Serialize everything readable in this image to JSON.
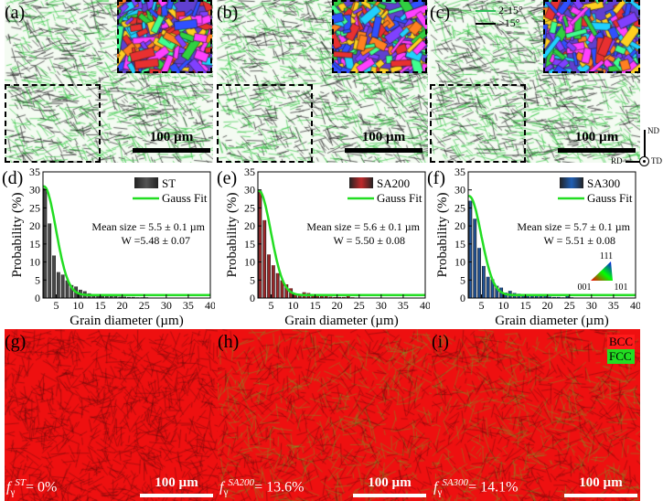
{
  "top_panels": [
    {
      "label": "(a)",
      "scale": "100 µm"
    },
    {
      "label": "(b)",
      "scale": "100 µm"
    },
    {
      "label": "(c)",
      "scale": "100 µm"
    }
  ],
  "boundary_legend": [
    {
      "label": "2-15°",
      "color": "#2fbf5a"
    },
    {
      "label": ">15°",
      "color": "#000000"
    }
  ],
  "axes_symbol": {
    "nd": "ND",
    "rd": "RD",
    "td": "TD"
  },
  "chart_data": [
    {
      "type": "bar",
      "panel": "(d)",
      "series_name": "ST",
      "color": "#555555",
      "fit_name": "Gauss Fit",
      "fit_color": "#22dd22",
      "xlabel": "Grain diameter (µm)",
      "ylabel": "Probability (%)",
      "xlim": [
        2,
        40
      ],
      "ylim": [
        0,
        35
      ],
      "xticks": [
        5,
        10,
        15,
        20,
        25,
        30,
        35,
        40
      ],
      "yticks": [
        0,
        5,
        10,
        15,
        20,
        25,
        30,
        35
      ],
      "x": [
        2.5,
        3.5,
        4.5,
        5.5,
        6.5,
        7.5,
        8.5,
        9.5,
        10.5,
        11.5,
        12.5,
        13.5,
        14.5,
        15.5,
        16.5,
        17.5,
        18.5,
        19.5,
        20.5,
        21.5,
        22.5,
        23.5,
        24.5,
        25.5
      ],
      "values": [
        30.5,
        20.7,
        11.8,
        7.2,
        6.5,
        4.9,
        3.6,
        3.2,
        2.3,
        1.9,
        1.3,
        1.0,
        0.9,
        0.8,
        0.7,
        0.6,
        0.5,
        0.4,
        0.4,
        0.3,
        0.3,
        0.2,
        0.2,
        0.2
      ],
      "fit": {
        "y0": 0.8,
        "xc": 2.2,
        "w": 5.48,
        "peak": 31
      },
      "annotation": [
        "Mean size = 5.5 ± 0.1 µm",
        "W =5.48 ± 0.07"
      ]
    },
    {
      "type": "bar",
      "panel": "(e)",
      "series_name": "SA200",
      "color": "#c0292b",
      "fit_name": "Gauss Fit",
      "fit_color": "#22dd22",
      "xlabel": "Grain diameter (µm)",
      "ylabel": "Probability (%)",
      "xlim": [
        2,
        40
      ],
      "ylim": [
        0,
        35
      ],
      "xticks": [
        5,
        10,
        15,
        20,
        25,
        30,
        35,
        40
      ],
      "yticks": [
        0,
        5,
        10,
        15,
        20,
        25,
        30,
        35
      ],
      "x": [
        2.5,
        3.5,
        4.5,
        5.5,
        6.5,
        7.5,
        8.5,
        9.5,
        10.5,
        11.5,
        12.5,
        13.5,
        14.5,
        15.5,
        16.5,
        17.5,
        18.5,
        19.5,
        20.5,
        21.5,
        22.5,
        23.5
      ],
      "values": [
        29.8,
        21.6,
        12.1,
        9.1,
        6.9,
        4.9,
        3.8,
        2.7,
        1.2,
        1.1,
        1.6,
        1.4,
        0.8,
        0.7,
        0.6,
        0.6,
        0.4,
        0.3,
        0.3,
        0.3,
        0.5,
        0.2
      ],
      "fit": {
        "y0": 0.8,
        "xc": 2.2,
        "w": 5.5,
        "peak": 29.8
      },
      "annotation": [
        "Mean size = 5.6 ± 0.1 µm",
        "W = 5.50 ± 0.08"
      ]
    },
    {
      "type": "bar",
      "panel": "(f)",
      "series_name": "SA300",
      "color": "#1f5fb5",
      "fit_name": "Gauss Fit",
      "fit_color": "#22dd22",
      "xlabel": "Grain diameter (µm)",
      "ylabel": "Probability (%)",
      "xlim": [
        2,
        40
      ],
      "ylim": [
        0,
        35
      ],
      "xticks": [
        5,
        10,
        15,
        20,
        25,
        30,
        35,
        40
      ],
      "yticks": [
        0,
        5,
        10,
        15,
        20,
        25,
        30,
        35
      ],
      "x": [
        2.5,
        3.5,
        4.5,
        5.5,
        6.5,
        7.5,
        8.5,
        9.5,
        10.5,
        11.5,
        12.5,
        13.5,
        14.5,
        15.5,
        16.5,
        17.5,
        18.5,
        19.5,
        20.5,
        21.5,
        22.5,
        23.5,
        24.5,
        25.5
      ],
      "values": [
        27.0,
        22.0,
        13.9,
        8.9,
        5.9,
        5.2,
        3.4,
        2.9,
        1.5,
        2.0,
        1.4,
        1.2,
        0.9,
        0.8,
        0.7,
        0.6,
        0.6,
        0.5,
        0.4,
        0.3,
        0.3,
        0.2,
        0.5,
        0.2
      ],
      "fit": {
        "y0": 0.8,
        "xc": 2.2,
        "w": 5.51,
        "peak": 28.3
      },
      "annotation": [
        "Mean size = 5.7 ± 0.1 µm",
        "W = 5.51 ± 0.08"
      ]
    }
  ],
  "ipf": {
    "top": "111",
    "left": "001",
    "right": "101"
  },
  "bottom_panels": [
    {
      "label": "(g)",
      "fraction_sup": "ST",
      "fraction_value": "= 0%",
      "scale": "100 µm"
    },
    {
      "label": "(h)",
      "fraction_sup": "SA200",
      "fraction_value": "= 13.6%",
      "scale": "100 µm"
    },
    {
      "label": "(i)",
      "fraction_sup": "SA300",
      "fraction_value": "= 14.1%",
      "scale": "100 µm"
    }
  ],
  "phase_legend": [
    {
      "label": "BCC",
      "color": "#ff1a1a"
    },
    {
      "label": "FCC",
      "color": "#22dd22"
    }
  ]
}
